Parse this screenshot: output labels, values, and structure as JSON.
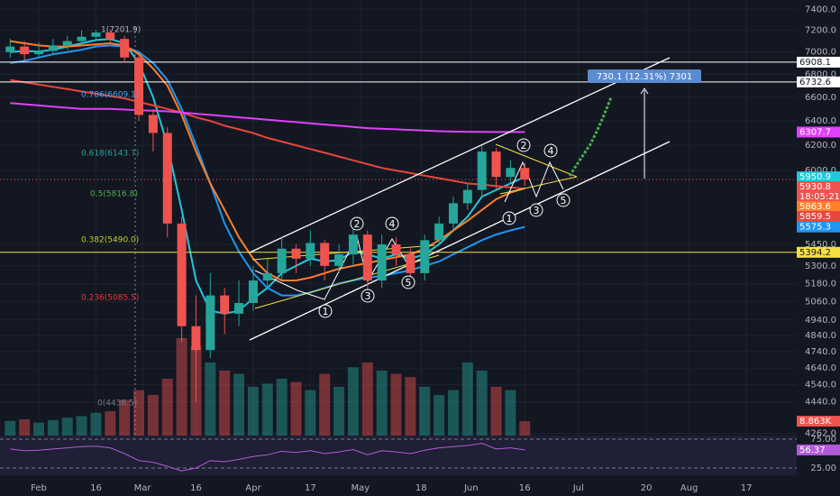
{
  "chart_data": {
    "type": "candlestick",
    "log_scale": true,
    "grid": true,
    "up_color": "#26a69a",
    "down_color": "#ef5350",
    "x": [
      -8,
      -4,
      0,
      4,
      8,
      12,
      16,
      20,
      24,
      28,
      32,
      36,
      40,
      44,
      48,
      52,
      56,
      60,
      64,
      68,
      72,
      76,
      80,
      84,
      88,
      92,
      96,
      100,
      104,
      108,
      112,
      116,
      120,
      124,
      128,
      132,
      136
    ],
    "open": [
      7000,
      7050,
      6980,
      7010,
      7060,
      7100,
      7140,
      7180,
      7120,
      6950,
      6450,
      6300,
      5600,
      4900,
      4750,
      5100,
      4980,
      5050,
      5200,
      5250,
      5420,
      5350,
      5460,
      5300,
      5380,
      5520,
      5200,
      5450,
      5380,
      5250,
      5480,
      5600,
      5750,
      5850,
      6150,
      5950,
      6020
    ],
    "high": [
      7120,
      7100,
      7090,
      7120,
      7150,
      7200,
      7202,
      7200,
      7150,
      6980,
      6500,
      6350,
      5650,
      5100,
      5250,
      5150,
      5200,
      5300,
      5350,
      5500,
      5450,
      5550,
      5480,
      5450,
      5600,
      5550,
      5520,
      5500,
      5420,
      5520,
      5650,
      5800,
      5900,
      6200,
      6180,
      6080,
      6060
    ],
    "low": [
      6950,
      6920,
      6940,
      6980,
      7020,
      7060,
      7100,
      7080,
      6900,
      6400,
      6150,
      5500,
      4800,
      4440,
      4700,
      4850,
      4900,
      5000,
      5150,
      5200,
      5250,
      5300,
      5200,
      5250,
      5300,
      5100,
      5150,
      5300,
      5150,
      5200,
      5450,
      5550,
      5700,
      5800,
      5850,
      5900,
      5880
    ],
    "close": [
      7050,
      6980,
      7010,
      7060,
      7100,
      7140,
      7180,
      7120,
      6950,
      6450,
      6300,
      5600,
      4900,
      4750,
      5100,
      4980,
      5050,
      5200,
      5250,
      5420,
      5350,
      5460,
      5300,
      5380,
      5520,
      5200,
      5450,
      5380,
      5250,
      5480,
      5600,
      5750,
      5850,
      6150,
      5950,
      6020,
      5930.8
    ],
    "xlim": [
      -10.85,
      212.1
    ],
    "xticks": [
      {
        "value": 0,
        "label": "Feb"
      },
      16,
      {
        "value": 29,
        "label": "Mar"
      },
      {
        "value": 44,
        "label": "16"
      },
      {
        "value": 60,
        "label": "Apr"
      },
      {
        "value": 76,
        "label": "17"
      },
      {
        "value": 90,
        "label": "May"
      },
      {
        "value": 107,
        "label": "18"
      },
      {
        "value": 121,
        "label": "Jun"
      },
      {
        "value": 136,
        "label": "16"
      },
      {
        "value": 151,
        "label": "Jul"
      },
      {
        "value": 170,
        "label": "20"
      },
      {
        "value": 182,
        "label": "Aug"
      },
      {
        "value": 198,
        "label": "17"
      }
    ],
    "ylim": [
      4250,
      7490
    ],
    "yticks": [
      {
        "value": 7400,
        "label": "7400.0"
      },
      {
        "value": 7200,
        "label": "7200.0"
      },
      {
        "value": 7000,
        "label": "7000.0"
      },
      {
        "value": 6800,
        "label": "6800.0"
      },
      {
        "value": 6600,
        "label": "6600.0"
      },
      {
        "value": 6400,
        "label": "6400.0"
      },
      {
        "value": 6200,
        "label": "6200.0"
      },
      {
        "value": 6000,
        "label": "6000.0"
      },
      {
        "value": 5450,
        "label": "5450.0"
      },
      {
        "value": 5300,
        "label": "5300.0"
      },
      {
        "value": 5180,
        "label": "5180.0"
      },
      {
        "value": 5060,
        "label": "5060.0"
      },
      {
        "value": 4940,
        "label": "4940.0"
      },
      {
        "value": 4840,
        "label": "4840.0"
      },
      {
        "value": 4740,
        "label": "4740.0"
      },
      {
        "value": 4640,
        "label": "4640.0"
      },
      {
        "value": 4540,
        "label": "4540.0"
      },
      {
        "value": 4440,
        "label": "4440.0"
      },
      {
        "value": 4262,
        "label": "4262.0"
      }
    ],
    "series": [
      {
        "color": "#26c6da",
        "values": [
          7000,
          7010,
          7005,
          7020,
          7050,
          7080,
          7110,
          7120,
          7080,
          6900,
          6600,
          6200,
          5700,
          5200,
          5000,
          4980,
          5000,
          5080,
          5150,
          5250,
          5300,
          5350,
          5330,
          5340,
          5400,
          5380,
          5350,
          5380,
          5350,
          5380,
          5450,
          5550,
          5650,
          5800,
          5850,
          5900,
          5950.9
        ]
      },
      {
        "color": "#2196f3",
        "values": [
          6900,
          6920,
          6950,
          6980,
          7000,
          7020,
          7050,
          7060,
          7050,
          7000,
          6900,
          6750,
          6500,
          6200,
          5900,
          5600,
          5400,
          5250,
          5150,
          5100,
          5100,
          5120,
          5150,
          5180,
          5200,
          5220,
          5230,
          5250,
          5270,
          5300,
          5330,
          5380,
          5430,
          5480,
          5520,
          5550,
          5575.3
        ]
      },
      {
        "color": "#ff7f2a",
        "values": [
          7100,
          7080,
          7060,
          7050,
          7050,
          7060,
          7070,
          7080,
          7060,
          6980,
          6850,
          6700,
          6450,
          6150,
          5900,
          5700,
          5500,
          5350,
          5250,
          5200,
          5200,
          5220,
          5250,
          5280,
          5300,
          5320,
          5340,
          5360,
          5380,
          5420,
          5480,
          5550,
          5620,
          5700,
          5780,
          5830,
          5863.6
        ]
      },
      {
        "color": "#e8453c",
        "values": [
          6750,
          6730,
          6710,
          6690,
          6670,
          6650,
          6630,
          6610,
          6590,
          6560,
          6530,
          6500,
          6470,
          6430,
          6400,
          6360,
          6330,
          6300,
          6260,
          6230,
          6200,
          6170,
          6140,
          6110,
          6080,
          6050,
          6020,
          6000,
          5980,
          5960,
          5940,
          5920,
          5900,
          5890,
          5880,
          5870,
          5859.5
        ]
      },
      {
        "color": "#e040fb",
        "values": [
          6550,
          6540,
          6530,
          6520,
          6510,
          6500,
          6500,
          6500,
          6495,
          6490,
          6485,
          6480,
          6470,
          6460,
          6450,
          6440,
          6430,
          6420,
          6410,
          6400,
          6390,
          6380,
          6370,
          6360,
          6350,
          6340,
          6335,
          6330,
          6325,
          6320,
          6315,
          6312,
          6310,
          6309,
          6308,
          6307.8,
          6307.7
        ]
      }
    ],
    "levels": [
      {
        "value": 6908.1,
        "color": "#ffffff"
      },
      {
        "value": 6732.6,
        "color": "#ffffff"
      },
      {
        "value": 5394.2,
        "color": "#f5e042"
      }
    ],
    "countdown": "18:05:21",
    "volume": {
      "values": [
        9000,
        10000,
        8000,
        9500,
        11000,
        12000,
        14000,
        15000,
        22000,
        28000,
        25000,
        35000,
        60000,
        55000,
        45000,
        40000,
        38000,
        30000,
        32000,
        35000,
        33000,
        28000,
        38000,
        30000,
        42000,
        45000,
        40000,
        38000,
        36000,
        30000,
        25000,
        28000,
        45000,
        40000,
        30000,
        28000,
        8863
      ],
      "ylim": [
        0,
        268000
      ],
      "last_label": "8.863K"
    },
    "rsi": {
      "values": [
        58,
        55,
        56,
        58,
        60,
        62,
        63,
        60,
        50,
        38,
        35,
        28,
        20,
        25,
        38,
        36,
        40,
        45,
        48,
        54,
        52,
        55,
        50,
        53,
        57,
        48,
        55,
        53,
        50,
        56,
        60,
        62,
        64,
        68,
        58,
        60,
        56.37
      ],
      "ylim": [
        12.5,
        81.25
      ],
      "yticks": [
        {
          "value": 75,
          "label": "75.00"
        },
        {
          "value": 25,
          "label": "25.00"
        }
      ],
      "color": "#b05cd6"
    },
    "fib_labels": [
      "1(7201.9)",
      "0.786(6609.1)",
      "0.618(6143.7)",
      "0.5(5816.8)",
      "0.382(5490.0)",
      "0.236(5085.5)",
      "0(4438.5)"
    ],
    "measure": "730.1 (12.31%) 7301",
    "waves": [
      "1",
      "2",
      "3",
      "4",
      "5",
      "1",
      "2",
      "3",
      "4",
      "5"
    ]
  }
}
